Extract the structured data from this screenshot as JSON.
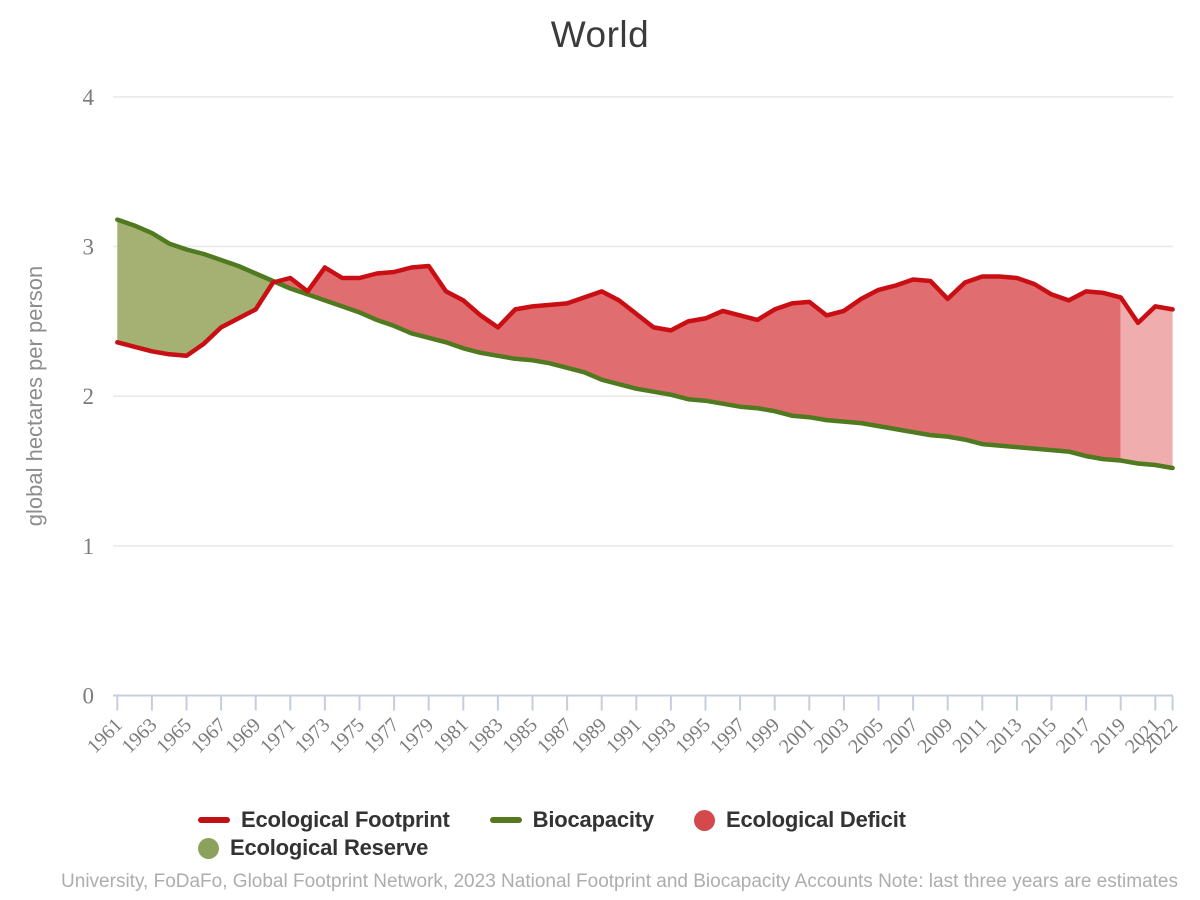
{
  "page": {
    "title": "World",
    "footer": "University, FoDaFo, Global Footprint Network, 2023 National Footprint and Biocapacity Accounts Note: last three years are estimates"
  },
  "legend": {
    "items": [
      {
        "label": "Ecological Footprint",
        "swatch": "line",
        "color": "#c11115"
      },
      {
        "label": "Biocapacity",
        "swatch": "line",
        "color": "#56781f"
      },
      {
        "label": "Ecological Deficit",
        "swatch": "circle",
        "color": "#d5494c"
      },
      {
        "label": "Ecological Reserve",
        "swatch": "circle",
        "color": "#8ba15c"
      }
    ]
  },
  "chart_data": {
    "type": "area",
    "title": "World",
    "xlabel": "",
    "ylabel": "global hectares per person",
    "ylim": [
      0,
      4
    ],
    "yticks": [
      0,
      1,
      2,
      3,
      4
    ],
    "grid": true,
    "legend_position": "bottom",
    "note": "last three years are estimates",
    "estimate_start_year": 2019,
    "x_tick_years": [
      1961,
      1963,
      1965,
      1967,
      1969,
      1971,
      1973,
      1975,
      1977,
      1979,
      1981,
      1983,
      1985,
      1987,
      1989,
      1991,
      1993,
      1995,
      1997,
      1999,
      2001,
      2003,
      2005,
      2007,
      2009,
      2011,
      2013,
      2015,
      2017,
      2019,
      2021,
      2022
    ],
    "years": [
      1961,
      1962,
      1963,
      1964,
      1965,
      1966,
      1967,
      1968,
      1969,
      1970,
      1971,
      1972,
      1973,
      1974,
      1975,
      1976,
      1977,
      1978,
      1979,
      1980,
      1981,
      1982,
      1983,
      1984,
      1985,
      1986,
      1987,
      1988,
      1989,
      1990,
      1991,
      1992,
      1993,
      1994,
      1995,
      1996,
      1997,
      1998,
      1999,
      2000,
      2001,
      2002,
      2003,
      2004,
      2005,
      2006,
      2007,
      2008,
      2009,
      2010,
      2011,
      2012,
      2013,
      2014,
      2015,
      2016,
      2017,
      2018,
      2019,
      2020,
      2021,
      2022
    ],
    "series": [
      {
        "name": "Ecological Footprint",
        "color": "#c90f13",
        "values": [
          2.36,
          2.33,
          2.3,
          2.28,
          2.27,
          2.35,
          2.46,
          2.52,
          2.58,
          2.76,
          2.79,
          2.7,
          2.86,
          2.79,
          2.79,
          2.82,
          2.83,
          2.86,
          2.87,
          2.7,
          2.64,
          2.54,
          2.46,
          2.58,
          2.6,
          2.61,
          2.62,
          2.66,
          2.7,
          2.64,
          2.55,
          2.46,
          2.44,
          2.5,
          2.52,
          2.57,
          2.54,
          2.51,
          2.58,
          2.62,
          2.63,
          2.54,
          2.57,
          2.65,
          2.71,
          2.74,
          2.78,
          2.77,
          2.65,
          2.76,
          2.8,
          2.8,
          2.79,
          2.75,
          2.68,
          2.64,
          2.7,
          2.69,
          2.66,
          2.49,
          2.6,
          2.58
        ]
      },
      {
        "name": "Biocapacity",
        "color": "#4f7a1f",
        "values": [
          3.18,
          3.14,
          3.09,
          3.02,
          2.98,
          2.95,
          2.91,
          2.87,
          2.82,
          2.77,
          2.72,
          2.68,
          2.64,
          2.6,
          2.56,
          2.51,
          2.47,
          2.42,
          2.39,
          2.36,
          2.32,
          2.29,
          2.27,
          2.25,
          2.24,
          2.22,
          2.19,
          2.16,
          2.11,
          2.08,
          2.05,
          2.03,
          2.01,
          1.98,
          1.97,
          1.95,
          1.93,
          1.92,
          1.9,
          1.87,
          1.86,
          1.84,
          1.83,
          1.82,
          1.8,
          1.78,
          1.76,
          1.74,
          1.73,
          1.71,
          1.68,
          1.67,
          1.66,
          1.65,
          1.64,
          1.63,
          1.6,
          1.58,
          1.57,
          1.55,
          1.54,
          1.52
        ]
      }
    ],
    "fills": {
      "reserve": "#a4b172",
      "deficit": "#e06e70",
      "deficit_estimate": "#f0adae"
    }
  }
}
